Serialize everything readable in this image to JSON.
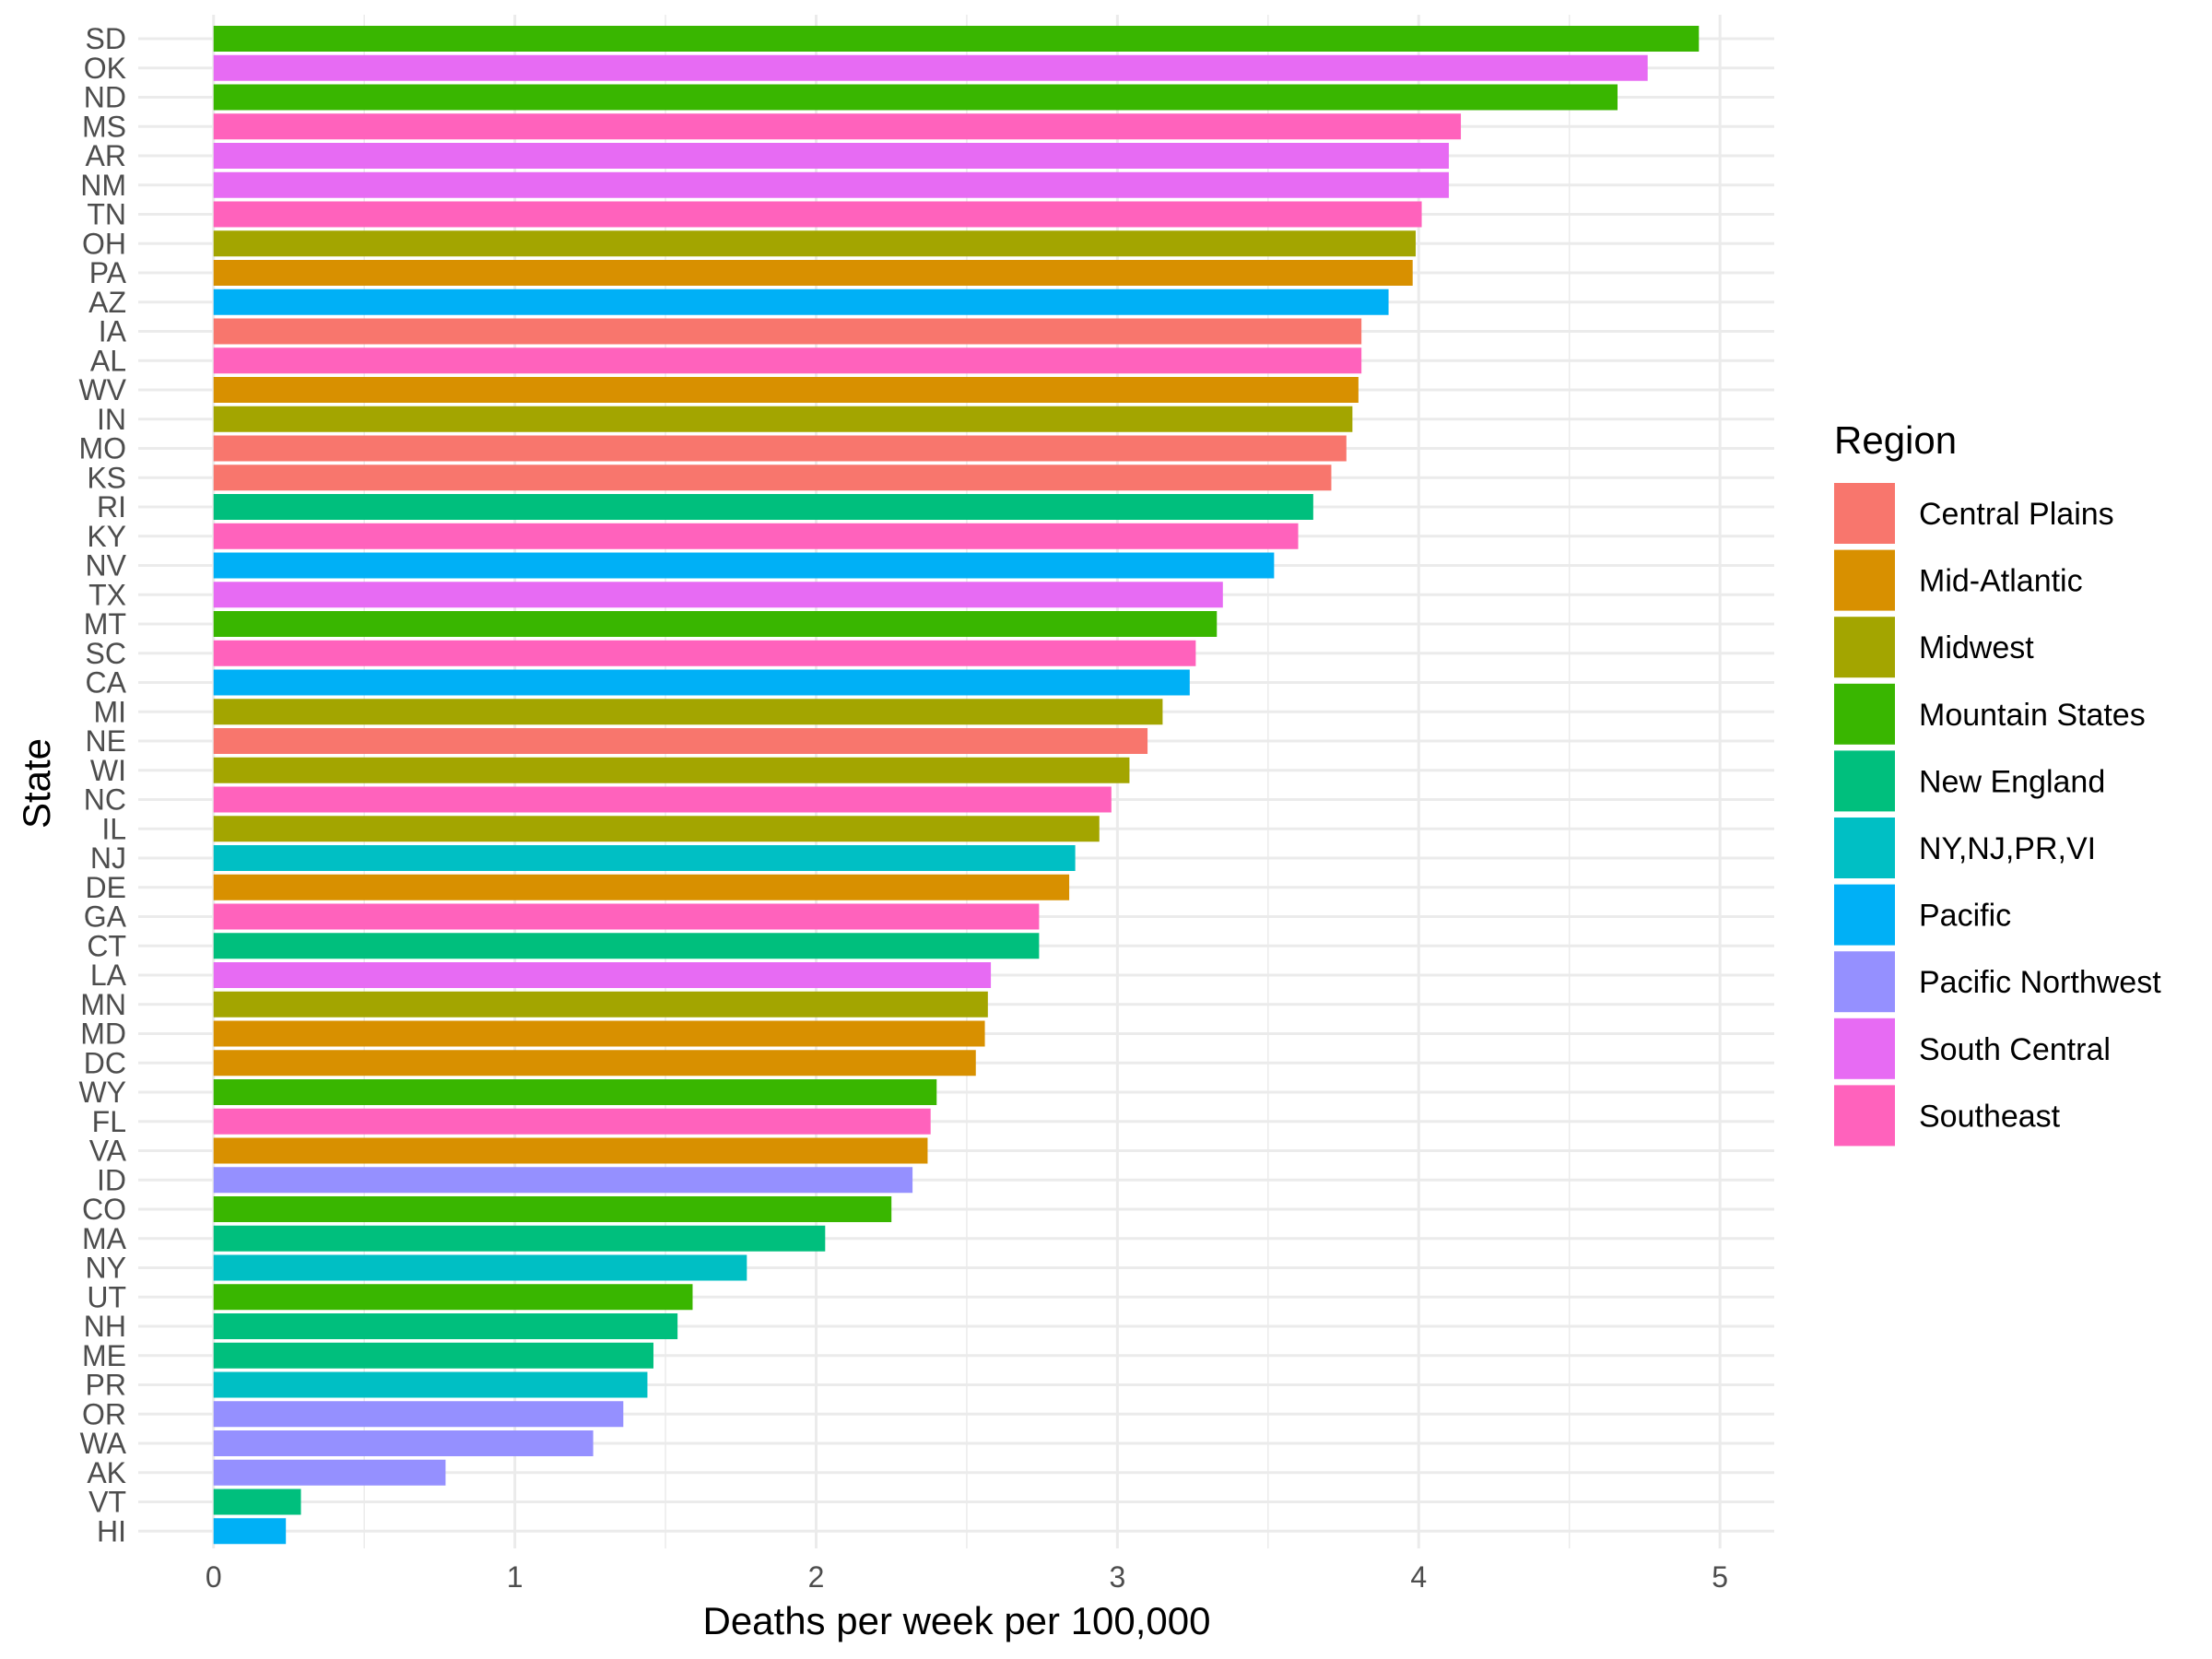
{
  "chart_data": {
    "type": "bar",
    "orientation": "horizontal",
    "xlabel": "Deaths per week per 100,000",
    "ylabel": "State",
    "xlim": [
      -0.25,
      5.18
    ],
    "x_ticks": [
      0,
      1,
      2,
      3,
      4,
      5
    ],
    "grid": true,
    "legend": {
      "title": "Region",
      "position": "right",
      "entries": [
        {
          "name": "Central Plains",
          "color": "#F8766D"
        },
        {
          "name": "Mid-Atlantic",
          "color": "#D89000"
        },
        {
          "name": "Midwest",
          "color": "#A3A500"
        },
        {
          "name": "Mountain States",
          "color": "#39B600"
        },
        {
          "name": "New England",
          "color": "#00BF7D"
        },
        {
          "name": "NY,NJ,PR,VI",
          "color": "#00BFC4"
        },
        {
          "name": "Pacific",
          "color": "#00B0F6"
        },
        {
          "name": "Pacific Northwest",
          "color": "#9590FF"
        },
        {
          "name": "South Central",
          "color": "#E76BF3"
        },
        {
          "name": "Southeast",
          "color": "#FF62BC"
        }
      ]
    },
    "bars": [
      {
        "state": "SD",
        "value": 4.93,
        "region": "Mountain States"
      },
      {
        "state": "OK",
        "value": 4.76,
        "region": "South Central"
      },
      {
        "state": "ND",
        "value": 4.66,
        "region": "Mountain States"
      },
      {
        "state": "MS",
        "value": 4.14,
        "region": "Southeast"
      },
      {
        "state": "AR",
        "value": 4.1,
        "region": "South Central"
      },
      {
        "state": "NM",
        "value": 4.1,
        "region": "South Central"
      },
      {
        "state": "TN",
        "value": 4.01,
        "region": "Southeast"
      },
      {
        "state": "OH",
        "value": 3.99,
        "region": "Midwest"
      },
      {
        "state": "PA",
        "value": 3.98,
        "region": "Mid-Atlantic"
      },
      {
        "state": "AZ",
        "value": 3.9,
        "region": "Pacific"
      },
      {
        "state": "IA",
        "value": 3.81,
        "region": "Central Plains"
      },
      {
        "state": "AL",
        "value": 3.81,
        "region": "Southeast"
      },
      {
        "state": "WV",
        "value": 3.8,
        "region": "Mid-Atlantic"
      },
      {
        "state": "IN",
        "value": 3.78,
        "region": "Midwest"
      },
      {
        "state": "MO",
        "value": 3.76,
        "region": "Central Plains"
      },
      {
        "state": "KS",
        "value": 3.71,
        "region": "Central Plains"
      },
      {
        "state": "RI",
        "value": 3.65,
        "region": "New England"
      },
      {
        "state": "KY",
        "value": 3.6,
        "region": "Southeast"
      },
      {
        "state": "NV",
        "value": 3.52,
        "region": "Pacific"
      },
      {
        "state": "TX",
        "value": 3.35,
        "region": "South Central"
      },
      {
        "state": "MT",
        "value": 3.33,
        "region": "Mountain States"
      },
      {
        "state": "SC",
        "value": 3.26,
        "region": "Southeast"
      },
      {
        "state": "CA",
        "value": 3.24,
        "region": "Pacific"
      },
      {
        "state": "MI",
        "value": 3.15,
        "region": "Midwest"
      },
      {
        "state": "NE",
        "value": 3.1,
        "region": "Central Plains"
      },
      {
        "state": "WI",
        "value": 3.04,
        "region": "Midwest"
      },
      {
        "state": "NC",
        "value": 2.98,
        "region": "Southeast"
      },
      {
        "state": "IL",
        "value": 2.94,
        "region": "Midwest"
      },
      {
        "state": "NJ",
        "value": 2.86,
        "region": "NY,NJ,PR,VI"
      },
      {
        "state": "DE",
        "value": 2.84,
        "region": "Mid-Atlantic"
      },
      {
        "state": "GA",
        "value": 2.74,
        "region": "Southeast"
      },
      {
        "state": "CT",
        "value": 2.74,
        "region": "New England"
      },
      {
        "state": "LA",
        "value": 2.58,
        "region": "South Central"
      },
      {
        "state": "MN",
        "value": 2.57,
        "region": "Midwest"
      },
      {
        "state": "MD",
        "value": 2.56,
        "region": "Mid-Atlantic"
      },
      {
        "state": "DC",
        "value": 2.53,
        "region": "Mid-Atlantic"
      },
      {
        "state": "WY",
        "value": 2.4,
        "region": "Mountain States"
      },
      {
        "state": "FL",
        "value": 2.38,
        "region": "Southeast"
      },
      {
        "state": "VA",
        "value": 2.37,
        "region": "Mid-Atlantic"
      },
      {
        "state": "ID",
        "value": 2.32,
        "region": "Pacific Northwest"
      },
      {
        "state": "CO",
        "value": 2.25,
        "region": "Mountain States"
      },
      {
        "state": "MA",
        "value": 2.03,
        "region": "New England"
      },
      {
        "state": "NY",
        "value": 1.77,
        "region": "NY,NJ,PR,VI"
      },
      {
        "state": "UT",
        "value": 1.59,
        "region": "Mountain States"
      },
      {
        "state": "NH",
        "value": 1.54,
        "region": "New England"
      },
      {
        "state": "ME",
        "value": 1.46,
        "region": "New England"
      },
      {
        "state": "PR",
        "value": 1.44,
        "region": "NY,NJ,PR,VI"
      },
      {
        "state": "OR",
        "value": 1.36,
        "region": "Pacific Northwest"
      },
      {
        "state": "WA",
        "value": 1.26,
        "region": "Pacific Northwest"
      },
      {
        "state": "AK",
        "value": 0.77,
        "region": "Pacific Northwest"
      },
      {
        "state": "VT",
        "value": 0.29,
        "region": "New England"
      },
      {
        "state": "HI",
        "value": 0.24,
        "region": "Pacific"
      }
    ]
  }
}
